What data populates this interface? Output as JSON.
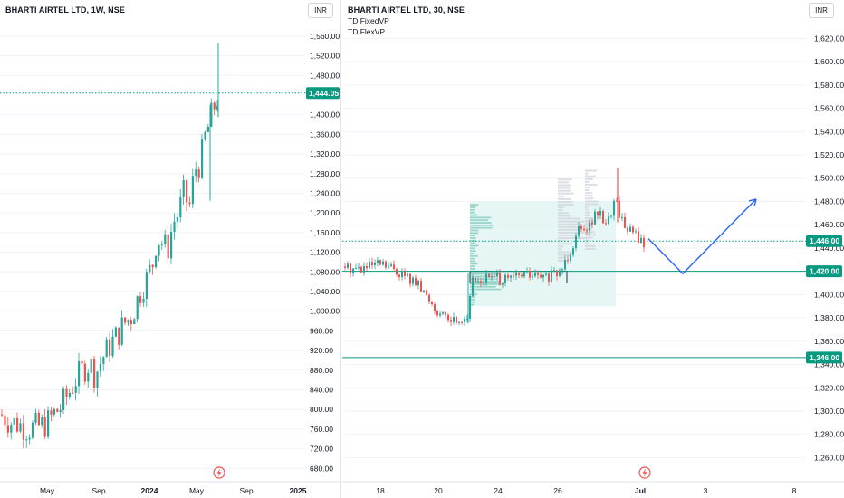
{
  "left_chart": {
    "title": "BHARTI AIRTEL LTD, 1W, NSE",
    "currency_button": "INR",
    "price_tag": "1,444.05",
    "y_ticks": [
      "1,560.00",
      "1,520.00",
      "1,480.00",
      "1,400.00",
      "1,360.00",
      "1,320.00",
      "1,280.00",
      "1,240.00",
      "1,200.00",
      "1,160.00",
      "1,120.00",
      "1,080.00",
      "1,040.00",
      "1,000.00",
      "960.00",
      "920.00",
      "880.00",
      "840.00",
      "800.00",
      "760.00",
      "720.00",
      "680.00"
    ],
    "x_ticks": [
      "May",
      "Sep",
      "2024",
      "May",
      "Sep",
      "2025"
    ],
    "events_icon": "lightning-icon"
  },
  "right_chart": {
    "title": "BHARTI AIRTEL LTD, 30, NSE",
    "indicators": [
      "TD FixedVP",
      "TD FlexVP"
    ],
    "currency_button": "INR",
    "price_tags": [
      "1,446.00",
      "1,420.00",
      "1,346.00"
    ],
    "y_ticks": [
      "1,620.00",
      "1,600.00",
      "1,580.00",
      "1,560.00",
      "1,540.00",
      "1,520.00",
      "1,500.00",
      "1,480.00",
      "1,460.00",
      "1,440.00",
      "1,400.00",
      "1,380.00",
      "1,360.00",
      "1,340.00",
      "1,320.00",
      "1,300.00",
      "1,280.00",
      "1,260.00"
    ],
    "x_ticks": [
      "18",
      "20",
      "24",
      "26",
      "Jul",
      "3",
      "8"
    ],
    "events_icon": "lightning-icon"
  },
  "colors": {
    "up": "#26a69a",
    "down": "#ef5350",
    "tag": "#089981",
    "projection": "#2962ff",
    "level_line": "#089981"
  }
}
